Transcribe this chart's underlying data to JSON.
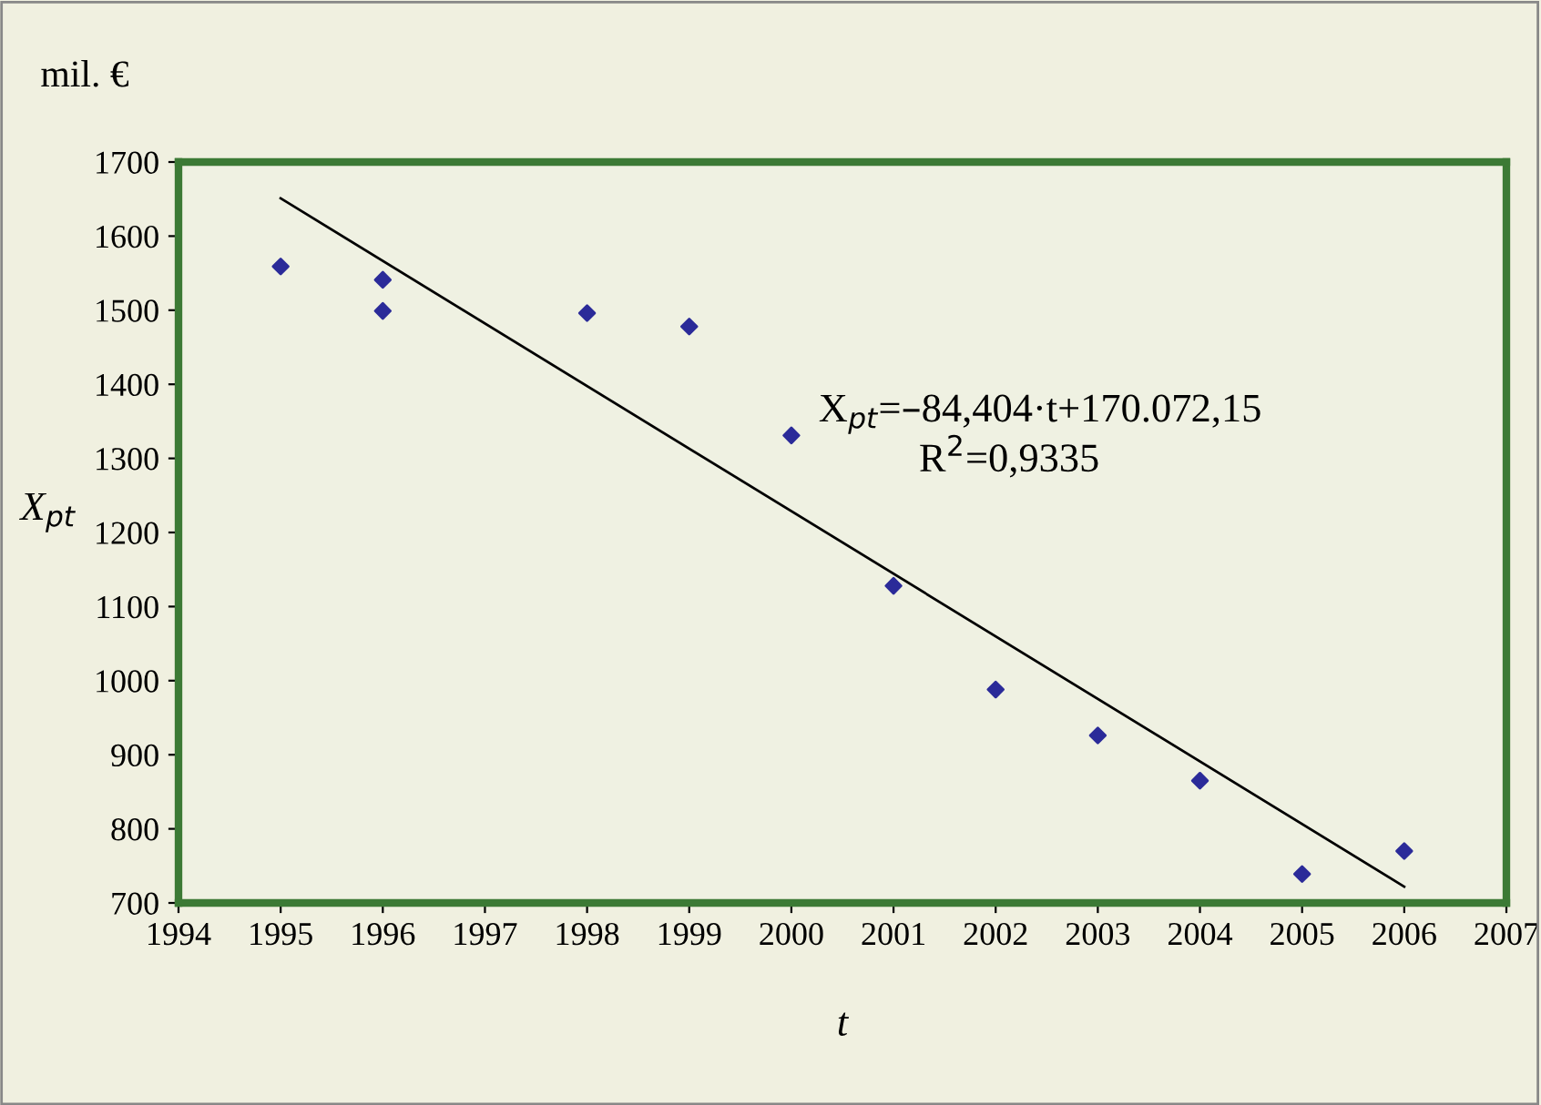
{
  "chart_data": {
    "type": "scatter",
    "xlabel": "t",
    "ylabel": "X$_{pt}$",
    "annotations": [
      "mil. €",
      "X$_{pt}$=–84,404·t+170.072,15",
      "R$^{2}$=0,9335"
    ],
    "series": [
      {
        "color": "#2b2b99",
        "marker": "diamond",
        "x": [
          1995,
          1996,
          1996,
          1998,
          1999,
          2000,
          2001,
          2002,
          2003,
          2004,
          2005,
          2006
        ],
        "values": [
          1559,
          1541,
          1499,
          1496,
          1478,
          1331,
          1128,
          988,
          926,
          865,
          739,
          770
        ]
      },
      {
        "type": "line",
        "color": "#000000",
        "marker": "none",
        "line_style": "solid",
        "x": [
          1995,
          2006
        ],
        "values": [
          1651,
          722
        ]
      }
    ],
    "xlim": [
      1994,
      2007
    ],
    "xticks": [
      1994,
      1995,
      1996,
      1997,
      1998,
      1999,
      2000,
      2001,
      2002,
      2003,
      2004,
      2005,
      2006,
      2007
    ],
    "ylim": [
      700,
      1700
    ],
    "yticks": [
      700,
      800,
      900,
      1000,
      1100,
      1200,
      1300,
      1400,
      1500,
      1600,
      1700
    ],
    "grid": false,
    "legend": false
  }
}
